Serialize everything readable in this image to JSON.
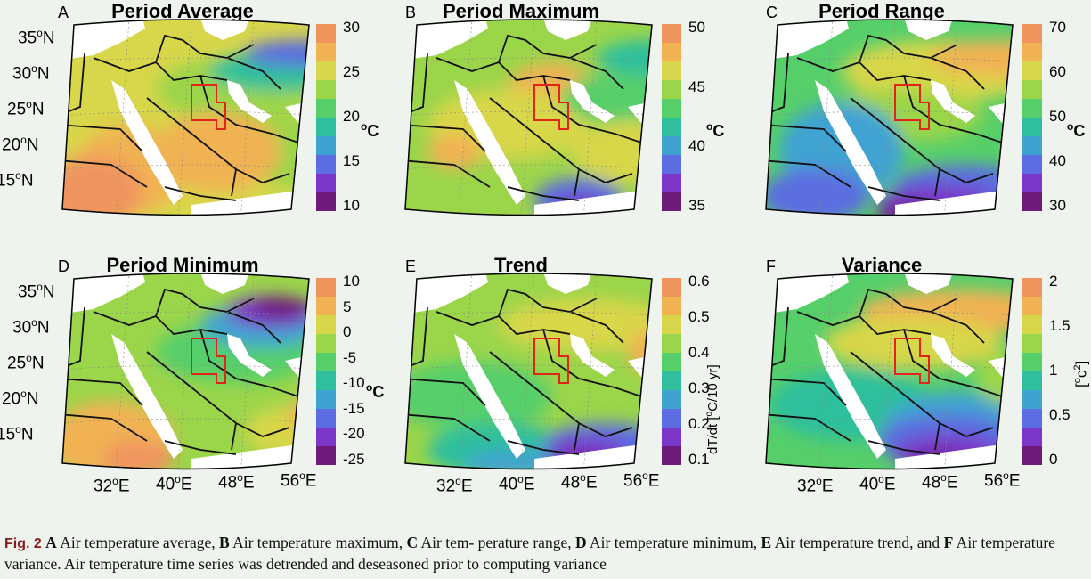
{
  "panels": [
    {
      "letter": "A",
      "title": "Period Average",
      "unit": "oC",
      "ticks": [
        "30",
        "25",
        "20",
        "15",
        "10"
      ],
      "palette": "avg"
    },
    {
      "letter": "B",
      "title": "Period Maximum",
      "unit": "oC",
      "ticks": [
        "50",
        "45",
        "40",
        "35"
      ],
      "palette": "max"
    },
    {
      "letter": "C",
      "title": "Period Range",
      "unit": "oC",
      "ticks": [
        "70",
        "60",
        "50",
        "40",
        "30"
      ],
      "palette": "range"
    },
    {
      "letter": "D",
      "title": "Period Minimum",
      "unit": "oC",
      "ticks": [
        "10",
        "5",
        "0",
        "-5",
        "-10",
        "-15",
        "-20",
        "-25"
      ],
      "palette": "min"
    },
    {
      "letter": "E",
      "title": "Trend",
      "unit": "dT/dt [oC/10 yr]",
      "ticks": [
        "0.6",
        "0.5",
        "0.4",
        "0.3",
        "0.2",
        "0.1"
      ],
      "palette": "trend"
    },
    {
      "letter": "F",
      "title": "Variance",
      "unit": "[oc2]",
      "ticks": [
        "2",
        "1.5",
        "1",
        "0.5",
        "0"
      ],
      "palette": "var"
    }
  ],
  "lat_labels": [
    "35oN",
    "30oN",
    "25oN",
    "20oN",
    "15oN"
  ],
  "lon_labels": [
    "32oE",
    "40oE",
    "48oE",
    "56oE"
  ],
  "colors": {
    "c1": "#6e1b7c",
    "c2": "#7a37c8",
    "c3": "#5b6de0",
    "c4": "#3fa3d2",
    "c5": "#2fbf9c",
    "c6": "#56cf6a",
    "c7": "#9bd54a",
    "c8": "#d8d64a",
    "c9": "#f1b253",
    "c10": "#f0945e",
    "land_white": "#ffffff",
    "box": "#e3241b"
  },
  "caption": {
    "figno": "Fig. 2",
    "parts": [
      {
        "b": "A",
        "t": " Air temperature average, "
      },
      {
        "b": "B",
        "t": " Air temperature maximum, "
      },
      {
        "b": "C",
        "t": " Air tem- perature range, "
      },
      {
        "b": "D",
        "t": " Air temperature minimum, "
      },
      {
        "b": "E",
        "t": " Air temperature trend, and "
      },
      {
        "b": "F",
        "t": " Air temperature variance. Air temperature time series was detrended and deseasoned prior to computing variance"
      }
    ]
  }
}
